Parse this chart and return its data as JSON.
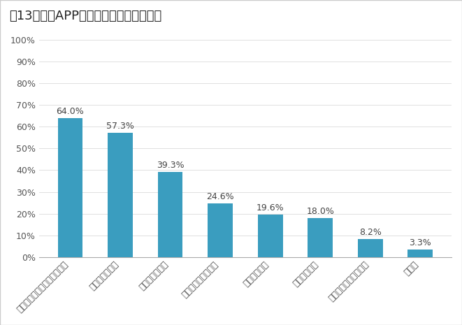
{
  "title": "图13：手机APP出现个人安全问题的原因",
  "categories": [
    "个人信息的安全保护意识淡薄",
    "相关监管不到位",
    "相关法律不完善",
    "取证难，维权成本高",
    "维权意识不强",
    "行业缺乏自律",
    "赔偿数额与处罚力度小",
    "不知道"
  ],
  "values": [
    64.0,
    57.3,
    39.3,
    24.6,
    19.6,
    18.0,
    8.2,
    3.3
  ],
  "bar_color": "#3a9dbf",
  "background_color": "#ffffff",
  "plot_bg_color": "#ffffff",
  "ylim": [
    0,
    100
  ],
  "yticks": [
    0,
    10,
    20,
    30,
    40,
    50,
    60,
    70,
    80,
    90,
    100
  ],
  "ytick_labels": [
    "0%",
    "10%",
    "20%",
    "30%",
    "40%",
    "50%",
    "60%",
    "70%",
    "80%",
    "90%",
    "100%"
  ],
  "title_fontsize": 13,
  "label_fontsize": 9,
  "value_fontsize": 9,
  "tick_fontsize": 9
}
